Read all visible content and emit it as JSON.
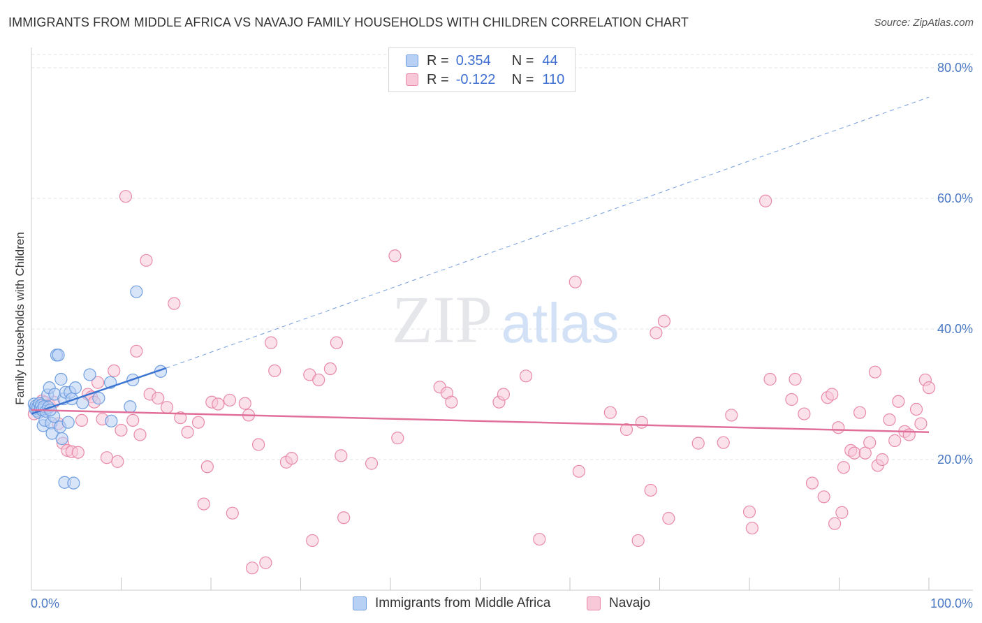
{
  "title": "IMMIGRANTS FROM MIDDLE AFRICA VS NAVAJO FAMILY HOUSEHOLDS WITH CHILDREN CORRELATION CHART",
  "source": "Source: ZipAtlas.com",
  "watermark": {
    "zip": "ZIP",
    "atlas": "atlas"
  },
  "legend": {
    "r_label": "R =",
    "n_label": "N =",
    "rows": [
      {
        "r": "0.354",
        "n": "44"
      },
      {
        "r": "-0.122",
        "n": "110"
      }
    ]
  },
  "colors": {
    "blue_fill": "#b8d0f4",
    "blue_stroke": "#6f9ee0",
    "blue_line": "#3b74d1",
    "pink_fill": "#f8c8d8",
    "pink_stroke": "#e88aa8",
    "pink_line": "#e0709a",
    "grid": "#dde3ea",
    "axis": "#cccccc"
  },
  "chart_data": {
    "type": "scatter",
    "title": "IMMIGRANTS FROM MIDDLE AFRICA VS NAVAJO FAMILY HOUSEHOLDS WITH CHILDREN CORRELATION CHART",
    "xlabel": "",
    "ylabel": "Family Households with Children",
    "xlim": [
      0,
      100
    ],
    "ylim": [
      0,
      82
    ],
    "x_tick_labels": [
      "0.0%",
      "100.0%"
    ],
    "y_ticks": [
      20,
      40,
      60,
      80
    ],
    "y_tick_labels": [
      "20.0%",
      "40.0%",
      "60.0%",
      "80.0%"
    ],
    "grid": true,
    "legend_position": "top-center",
    "series": [
      {
        "name": "Immigrants from Middle Africa",
        "color": "blue",
        "r": 0.354,
        "n": 44,
        "trend": {
          "x0": 0,
          "y0": 27.0,
          "x1": 15,
          "y1": 34.0,
          "dashed_to_x": 100,
          "dashed_to_y": 75.5
        },
        "points": [
          [
            0.3,
            28.5
          ],
          [
            0.4,
            27.8
          ],
          [
            0.5,
            28.2
          ],
          [
            0.6,
            27.5
          ],
          [
            0.7,
            28.0
          ],
          [
            0.8,
            27.2
          ],
          [
            0.9,
            28.6
          ],
          [
            1.0,
            27.9
          ],
          [
            1.1,
            28.3
          ],
          [
            1.2,
            27.6
          ],
          [
            1.3,
            25.2
          ],
          [
            1.4,
            28.1
          ],
          [
            1.5,
            26.0
          ],
          [
            1.6,
            27.4
          ],
          [
            1.8,
            29.9
          ],
          [
            2.0,
            31.0
          ],
          [
            2.2,
            25.6
          ],
          [
            2.3,
            24.0
          ],
          [
            2.5,
            26.6
          ],
          [
            2.6,
            30.0
          ],
          [
            2.8,
            36.0
          ],
          [
            3.0,
            36.0
          ],
          [
            3.2,
            25.0
          ],
          [
            3.3,
            32.3
          ],
          [
            3.4,
            23.2
          ],
          [
            3.6,
            29.3
          ],
          [
            3.7,
            16.5
          ],
          [
            3.8,
            30.3
          ],
          [
            4.1,
            25.7
          ],
          [
            4.3,
            30.3
          ],
          [
            4.5,
            29.3
          ],
          [
            4.7,
            16.4
          ],
          [
            4.9,
            31.0
          ],
          [
            5.7,
            28.7
          ],
          [
            6.5,
            33.0
          ],
          [
            7.5,
            29.4
          ],
          [
            8.8,
            31.8
          ],
          [
            8.9,
            25.9
          ],
          [
            11.0,
            28.1
          ],
          [
            11.3,
            32.2
          ],
          [
            11.7,
            45.7
          ],
          [
            14.4,
            33.5
          ],
          [
            1.9,
            28.0
          ],
          [
            2.1,
            27.6
          ]
        ]
      },
      {
        "name": "Navajo",
        "color": "pink",
        "r": -0.122,
        "n": 110,
        "trend": {
          "x0": 0,
          "y0": 27.6,
          "x1": 100,
          "y1": 24.2
        },
        "points": [
          [
            0.3,
            27.0
          ],
          [
            0.8,
            28.4
          ],
          [
            1.2,
            29.0
          ],
          [
            1.5,
            28.8
          ],
          [
            2.0,
            28.3
          ],
          [
            2.5,
            28.8
          ],
          [
            3.0,
            25.5
          ],
          [
            3.5,
            22.5
          ],
          [
            4.0,
            21.4
          ],
          [
            4.5,
            21.2
          ],
          [
            5.2,
            21.1
          ],
          [
            5.6,
            26.0
          ],
          [
            6.3,
            30.0
          ],
          [
            6.7,
            29.6
          ],
          [
            7.0,
            28.8
          ],
          [
            7.4,
            31.8
          ],
          [
            7.9,
            26.2
          ],
          [
            8.4,
            20.3
          ],
          [
            9.2,
            33.6
          ],
          [
            9.6,
            19.7
          ],
          [
            10.0,
            24.5
          ],
          [
            10.5,
            60.3
          ],
          [
            11.3,
            26.0
          ],
          [
            11.7,
            36.6
          ],
          [
            12.1,
            23.8
          ],
          [
            12.8,
            50.5
          ],
          [
            13.2,
            30.0
          ],
          [
            14.1,
            29.4
          ],
          [
            15.1,
            28.0
          ],
          [
            15.9,
            43.9
          ],
          [
            16.6,
            26.4
          ],
          [
            17.4,
            24.2
          ],
          [
            18.6,
            25.7
          ],
          [
            19.2,
            13.2
          ],
          [
            19.6,
            18.9
          ],
          [
            20.1,
            28.8
          ],
          [
            20.8,
            28.5
          ],
          [
            22.4,
            11.8
          ],
          [
            22.1,
            29.1
          ],
          [
            23.8,
            28.6
          ],
          [
            24.2,
            26.8
          ],
          [
            24.6,
            3.4
          ],
          [
            25.3,
            22.3
          ],
          [
            26.1,
            4.2
          ],
          [
            26.7,
            37.9
          ],
          [
            27.1,
            33.6
          ],
          [
            28.4,
            19.6
          ],
          [
            29.0,
            20.2
          ],
          [
            31.0,
            33.0
          ],
          [
            31.3,
            7.6
          ],
          [
            32.0,
            32.2
          ],
          [
            33.3,
            33.9
          ],
          [
            34.0,
            37.9
          ],
          [
            34.5,
            20.6
          ],
          [
            34.8,
            11.1
          ],
          [
            37.9,
            19.4
          ],
          [
            40.5,
            51.2
          ],
          [
            40.8,
            23.3
          ],
          [
            45.5,
            31.1
          ],
          [
            46.3,
            30.2
          ],
          [
            46.8,
            28.8
          ],
          [
            52.1,
            28.8
          ],
          [
            52.6,
            30.0
          ],
          [
            55.1,
            32.8
          ],
          [
            56.6,
            7.8
          ],
          [
            60.6,
            47.2
          ],
          [
            61.0,
            18.2
          ],
          [
            64.5,
            27.2
          ],
          [
            66.3,
            24.6
          ],
          [
            67.6,
            7.6
          ],
          [
            68.0,
            25.7
          ],
          [
            69.0,
            15.3
          ],
          [
            69.6,
            39.4
          ],
          [
            70.5,
            41.2
          ],
          [
            71.0,
            11.0
          ],
          [
            74.3,
            22.5
          ],
          [
            77.1,
            22.6
          ],
          [
            78.0,
            26.8
          ],
          [
            80.0,
            12.0
          ],
          [
            80.3,
            9.5
          ],
          [
            81.8,
            59.6
          ],
          [
            82.3,
            32.3
          ],
          [
            84.7,
            29.2
          ],
          [
            85.1,
            32.3
          ],
          [
            86.1,
            27.0
          ],
          [
            87.0,
            16.4
          ],
          [
            88.3,
            14.3
          ],
          [
            88.7,
            29.5
          ],
          [
            89.2,
            30.0
          ],
          [
            89.5,
            10.2
          ],
          [
            89.9,
            24.9
          ],
          [
            90.3,
            11.9
          ],
          [
            90.5,
            18.8
          ],
          [
            91.3,
            21.4
          ],
          [
            91.7,
            21.0
          ],
          [
            92.3,
            27.2
          ],
          [
            92.9,
            21.0
          ],
          [
            93.4,
            22.6
          ],
          [
            94.0,
            33.4
          ],
          [
            94.3,
            19.1
          ],
          [
            94.8,
            20.0
          ],
          [
            95.6,
            26.1
          ],
          [
            96.2,
            22.9
          ],
          [
            96.6,
            28.9
          ],
          [
            97.3,
            24.3
          ],
          [
            97.8,
            23.8
          ],
          [
            98.6,
            27.7
          ],
          [
            99.1,
            25.5
          ],
          [
            99.6,
            32.2
          ],
          [
            100.0,
            31.0
          ]
        ]
      }
    ]
  }
}
